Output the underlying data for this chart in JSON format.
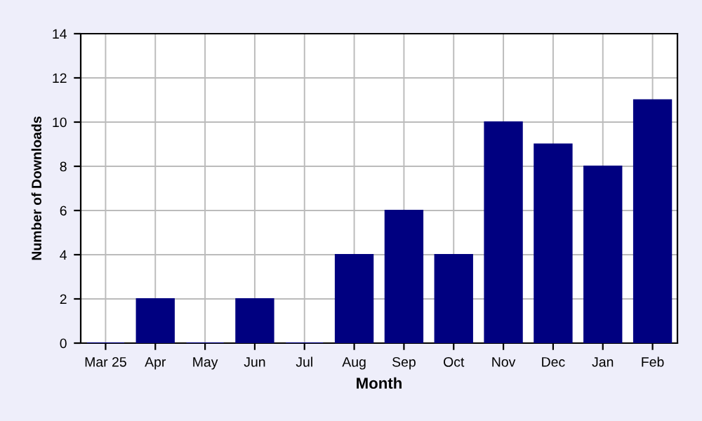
{
  "chart_data": {
    "type": "bar",
    "xlabel": "Month",
    "ylabel": "Number of Downloads",
    "categories": [
      "Mar 25",
      "Apr",
      "May",
      "Jun",
      "Jul",
      "Aug",
      "Sep",
      "Oct",
      "Nov",
      "Dec",
      "Jan",
      "Feb"
    ],
    "values": [
      0,
      2,
      0,
      2,
      0,
      4,
      6,
      4,
      10,
      9,
      8,
      11
    ],
    "color": "#000080",
    "ylim": [
      0,
      14
    ],
    "yticks": [
      0,
      2,
      4,
      6,
      8,
      10,
      12,
      14
    ],
    "grid": true
  }
}
